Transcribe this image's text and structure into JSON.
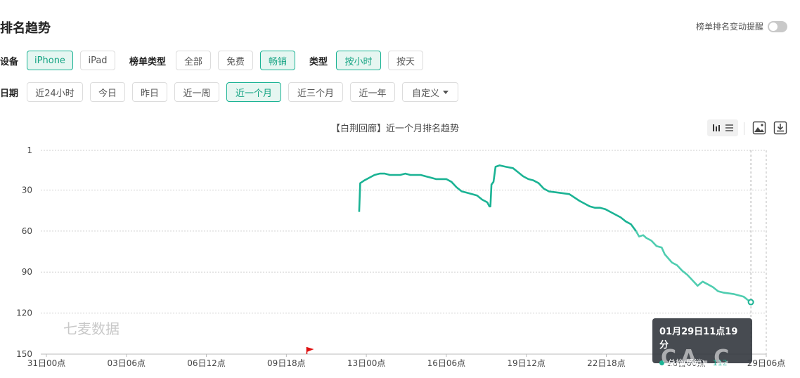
{
  "page": {
    "title": "排名趋势"
  },
  "rank_alert": {
    "label": "榜单排名变动提醒"
  },
  "filters": {
    "device": {
      "label": "设备",
      "options": [
        "iPhone",
        "iPad"
      ],
      "selected": "iPhone"
    },
    "list_type": {
      "label": "榜单类型",
      "options": [
        "全部",
        "免费",
        "畅销"
      ],
      "selected": "畅销"
    },
    "granularity": {
      "label": "类型",
      "options": [
        "按小时",
        "按天"
      ],
      "selected": "按小时"
    },
    "date": {
      "label": "日期",
      "options": [
        "近24小时",
        "今日",
        "昨日",
        "近一周",
        "近一个月",
        "近三个月",
        "近一年"
      ],
      "selected": "近一个月",
      "custom_label": "自定义"
    }
  },
  "toolbar": {
    "icons": [
      "chart-toggle-icon",
      "save-image-icon",
      "download-icon"
    ]
  },
  "watermark": "七麦数据",
  "tooltip": {
    "time": "01月29日11点19分",
    "series": "总榜(畅销)",
    "value": "112"
  },
  "corner_watermark": "CA.C",
  "colors": {
    "accent": "#1bb394",
    "line_light": "#4fcdb0"
  },
  "chart_data": {
    "type": "line",
    "title": "【白荆回廊】近一个月排名趋势",
    "y_inverted": true,
    "ylim": [
      1,
      150
    ],
    "yticks": [
      1,
      30,
      60,
      90,
      120,
      150
    ],
    "xlim_hours": [
      0,
      702
    ],
    "xticks": [
      {
        "label": "31日00点",
        "h": 0
      },
      {
        "label": "03日06点",
        "h": 78
      },
      {
        "label": "06日12点",
        "h": 156
      },
      {
        "label": "09日18点",
        "h": 234
      },
      {
        "label": "13日00点",
        "h": 312
      },
      {
        "label": "16日06点",
        "h": 390
      },
      {
        "label": "19日12点",
        "h": 468
      },
      {
        "label": "22日18点",
        "h": 546
      },
      {
        "label": "26日00点",
        "h": 624
      },
      {
        "label": "29日06点",
        "h": 702
      }
    ],
    "event_flag_h": 254,
    "series": [
      {
        "name": "总榜(畅销)",
        "points": [
          [
            305,
            46
          ],
          [
            306,
            25
          ],
          [
            310,
            23
          ],
          [
            315,
            21
          ],
          [
            320,
            19
          ],
          [
            325,
            18
          ],
          [
            330,
            18
          ],
          [
            335,
            19
          ],
          [
            340,
            19
          ],
          [
            345,
            19
          ],
          [
            350,
            18
          ],
          [
            355,
            19
          ],
          [
            360,
            19
          ],
          [
            365,
            19
          ],
          [
            370,
            20
          ],
          [
            375,
            21
          ],
          [
            380,
            22
          ],
          [
            385,
            22
          ],
          [
            390,
            22
          ],
          [
            395,
            24
          ],
          [
            400,
            28
          ],
          [
            405,
            31
          ],
          [
            410,
            32
          ],
          [
            415,
            33
          ],
          [
            420,
            34
          ],
          [
            425,
            37
          ],
          [
            430,
            39
          ],
          [
            432,
            42
          ],
          [
            433,
            42
          ],
          [
            434,
            26
          ],
          [
            436,
            24
          ],
          [
            438,
            13
          ],
          [
            442,
            12
          ],
          [
            448,
            13
          ],
          [
            455,
            14
          ],
          [
            460,
            17
          ],
          [
            465,
            20
          ],
          [
            470,
            22
          ],
          [
            475,
            23
          ],
          [
            480,
            25
          ],
          [
            485,
            29
          ],
          [
            490,
            31
          ],
          [
            500,
            32
          ],
          [
            510,
            33
          ],
          [
            520,
            38
          ],
          [
            525,
            40
          ],
          [
            530,
            42
          ],
          [
            535,
            43
          ],
          [
            540,
            43
          ],
          [
            545,
            44
          ],
          [
            550,
            46
          ],
          [
            555,
            48
          ],
          [
            560,
            50
          ],
          [
            565,
            53
          ],
          [
            570,
            55
          ],
          [
            575,
            60
          ],
          [
            578,
            64
          ],
          [
            582,
            63
          ],
          [
            585,
            65
          ],
          [
            590,
            67
          ],
          [
            595,
            71
          ],
          [
            600,
            72
          ],
          [
            603,
            77
          ],
          [
            610,
            83
          ],
          [
            615,
            85
          ],
          [
            620,
            89
          ],
          [
            625,
            92
          ],
          [
            630,
            96
          ],
          [
            635,
            100
          ],
          [
            640,
            97
          ],
          [
            645,
            99
          ],
          [
            650,
            101
          ],
          [
            655,
            104
          ],
          [
            660,
            105
          ],
          [
            670,
            106
          ],
          [
            680,
            108
          ],
          [
            685,
            111
          ],
          [
            687,
            112
          ]
        ]
      }
    ]
  }
}
